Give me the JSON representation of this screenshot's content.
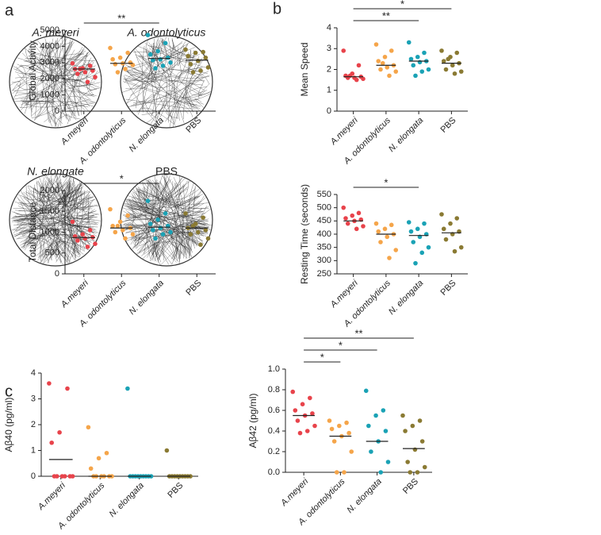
{
  "panel_labels": [
    "a",
    "b",
    "c"
  ],
  "trajectories": [
    "A. meyeri",
    "A. odontolyticus",
    "N. elongate",
    "PBS"
  ],
  "chart_data": [
    {
      "type": "strip",
      "ylabel": "Global Activity",
      "categories": [
        "A.meyeri",
        "A. odontolyticus",
        "N. elongata",
        "PBS"
      ],
      "category_styles": [
        "italic",
        "italic",
        "italic",
        "normal"
      ],
      "colors": [
        "#e8434b",
        "#f5a54a",
        "#1aa2b5",
        "#8a7a33"
      ],
      "points": [
        [
          2950,
          2800,
          2650,
          2600,
          2500,
          2400,
          2300,
          2100,
          1800,
          2600
        ],
        [
          3900,
          3600,
          3300,
          3200,
          3000,
          2950,
          2900,
          2850,
          2600,
          2400
        ],
        [
          4700,
          4200,
          3700,
          3500,
          3300,
          3200,
          3150,
          3000,
          2800,
          2650
        ],
        [
          3800,
          3650,
          3600,
          3400,
          3300,
          3100,
          2900,
          2700,
          2500,
          2400
        ]
      ],
      "means": [
        2600,
        2950,
        3250,
        3150
      ],
      "significance": [
        {
          "pair": [
            0,
            2
          ],
          "label": "**"
        }
      ],
      "ylim": [
        0,
        5000
      ],
      "yticks": [
        0,
        1000,
        2000,
        3000,
        4000,
        5000
      ]
    },
    {
      "type": "strip",
      "ylabel": "Mean Speed",
      "categories": [
        "A.meyeri",
        "A. odontolyticus",
        "N. elongata",
        "PBS"
      ],
      "category_styles": [
        "italic",
        "italic",
        "italic",
        "normal"
      ],
      "colors": [
        "#e8434b",
        "#f5a54a",
        "#1aa2b5",
        "#8a7a33"
      ],
      "points": [
        [
          2.9,
          2.2,
          1.8,
          1.7,
          1.65,
          1.6,
          1.6,
          1.55,
          1.5,
          1.7
        ],
        [
          3.2,
          2.9,
          2.6,
          2.4,
          2.2,
          2.1,
          2.0,
          1.9,
          1.7,
          2.3
        ],
        [
          3.3,
          2.8,
          2.6,
          2.5,
          2.4,
          2.35,
          2.2,
          2.0,
          1.9,
          1.7
        ],
        [
          2.9,
          2.8,
          2.6,
          2.4,
          2.3,
          2.2,
          2.0,
          1.9,
          1.8,
          2.5
        ]
      ],
      "means": [
        1.65,
        2.2,
        2.4,
        2.3
      ],
      "significance": [
        {
          "pair": [
            0,
            2
          ],
          "label": "**"
        },
        {
          "pair": [
            0,
            3
          ],
          "label": "*"
        }
      ],
      "ylim": [
        0,
        4
      ],
      "yticks": [
        0,
        1,
        2,
        3,
        4
      ]
    },
    {
      "type": "strip",
      "ylabel": "Total Distance",
      "categories": [
        "A.meyeri",
        "A. odontolyticus",
        "N. elongata",
        "PBS"
      ],
      "category_styles": [
        "italic",
        "italic",
        "italic",
        "normal"
      ],
      "colors": [
        "#e8434b",
        "#f5a54a",
        "#1aa2b5",
        "#8a7a33"
      ],
      "points": [
        [
          1250,
          1050,
          950,
          900,
          880,
          850,
          800,
          720,
          650
        ],
        [
          1550,
          1400,
          1250,
          1150,
          1100,
          1050,
          1000,
          950,
          850,
          1150
        ],
        [
          1750,
          1450,
          1300,
          1200,
          1150,
          1100,
          1050,
          1000,
          950,
          850
        ],
        [
          1450,
          1350,
          1200,
          1100,
          1050,
          1000,
          950,
          850,
          700,
          1150
        ]
      ],
      "means": [
        870,
        1100,
        1120,
        1100
      ],
      "significance": [
        {
          "pair": [
            0,
            2
          ],
          "label": "*"
        }
      ],
      "ylim": [
        0,
        2000
      ],
      "yticks": [
        0,
        500,
        1000,
        1500,
        2000
      ]
    },
    {
      "type": "strip",
      "ylabel": "Resting Time (seconds)",
      "categories": [
        "A.meyeri",
        "A. odontolyticus",
        "N. elongata",
        "PBS"
      ],
      "category_styles": [
        "italic",
        "italic",
        "italic",
        "normal"
      ],
      "colors": [
        "#e8434b",
        "#f5a54a",
        "#1aa2b5",
        "#8a7a33"
      ],
      "points": [
        [
          500,
          480,
          470,
          460,
          455,
          450,
          440,
          430,
          420
        ],
        [
          440,
          435,
          420,
          410,
          400,
          390,
          370,
          340,
          310
        ],
        [
          445,
          440,
          420,
          410,
          400,
          390,
          370,
          350,
          330,
          290
        ],
        [
          475,
          460,
          440,
          420,
          410,
          400,
          380,
          350,
          335
        ]
      ],
      "means": [
        450,
        400,
        395,
        405
      ],
      "significance": [
        {
          "pair": [
            0,
            2
          ],
          "label": "*"
        }
      ],
      "ylim": [
        250,
        550
      ],
      "yticks": [
        250,
        300,
        350,
        400,
        450,
        500,
        550
      ]
    },
    {
      "type": "strip",
      "ylabel": "Aβ40 (pg/ml)",
      "categories": [
        "A.meyeri",
        "A. odontolyticus",
        "N. elongata",
        "PBS"
      ],
      "category_styles": [
        "italic",
        "italic",
        "italic",
        "normal"
      ],
      "colors": [
        "#e8434b",
        "#f5a54a",
        "#1aa2b5",
        "#8a7a33"
      ],
      "points": [
        [
          3.6,
          3.4,
          1.7,
          1.3,
          0,
          0,
          0,
          0,
          0,
          0
        ],
        [
          1.9,
          0.9,
          0.7,
          0.3,
          0,
          0,
          0,
          0,
          0,
          0
        ],
        [
          3.4,
          0,
          0,
          0,
          0,
          0,
          0,
          0,
          0,
          0
        ],
        [
          1.0,
          0,
          0,
          0,
          0,
          0,
          0,
          0,
          0,
          0
        ]
      ],
      "means": [
        0.65,
        0,
        0,
        0
      ],
      "significance": [],
      "ylim": [
        0,
        4
      ],
      "yticks": [
        0,
        1,
        2,
        3,
        4
      ]
    },
    {
      "type": "strip",
      "ylabel": "Aβ42 (pg/ml)",
      "categories": [
        "A.meyeri",
        "A. odontolyticus",
        "N. elongata",
        "PBS"
      ],
      "category_styles": [
        "italic",
        "italic",
        "italic",
        "normal"
      ],
      "colors": [
        "#e8434b",
        "#f5a54a",
        "#1aa2b5",
        "#8a7a33"
      ],
      "points": [
        [
          0.78,
          0.72,
          0.66,
          0.6,
          0.57,
          0.55,
          0.5,
          0.45,
          0.4,
          0.38
        ],
        [
          0.5,
          0.48,
          0.45,
          0.42,
          0.38,
          0.35,
          0.3,
          0.2,
          0.0,
          0.0
        ],
        [
          0.79,
          0.6,
          0.55,
          0.45,
          0.4,
          0.3,
          0.2,
          0.1,
          0.0
        ],
        [
          0.55,
          0.5,
          0.45,
          0.4,
          0.3,
          0.22,
          0.1,
          0.05,
          0.0,
          0.0
        ]
      ],
      "means": [
        0.55,
        0.35,
        0.3,
        0.23
      ],
      "significance": [
        {
          "pair": [
            0,
            1
          ],
          "label": "*"
        },
        {
          "pair": [
            0,
            2
          ],
          "label": "*"
        },
        {
          "pair": [
            0,
            3
          ],
          "label": "**"
        }
      ],
      "ylim": [
        0,
        1
      ],
      "yticks": [
        {
          "value": 0,
          "label": "0.0"
        },
        0.2,
        0.4,
        0.6,
        0.8,
        {
          "value": 1,
          "label": "1.0"
        }
      ]
    }
  ]
}
